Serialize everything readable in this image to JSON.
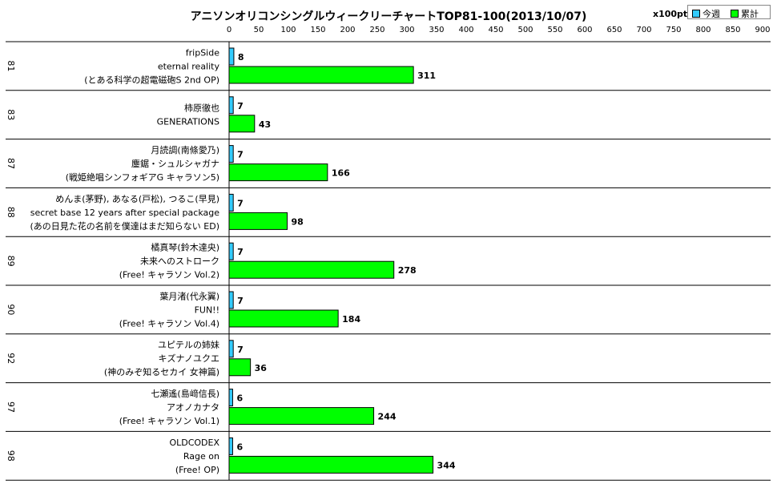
{
  "title": "アニソンオリコンシングルウィークリーチャートTOP81-100(2013/10/07)",
  "unit_label": "x100pt",
  "legend": [
    {
      "label": "今週",
      "color": "#33ccff"
    },
    {
      "label": "累計",
      "color": "#00ff00"
    }
  ],
  "chart_data": {
    "type": "bar",
    "orientation": "horizontal",
    "title": "アニソンオリコンシングルウィークリーチャートTOP81-100(2013/10/07)",
    "unit": "x100pt",
    "xlim": [
      0,
      900
    ],
    "ticks": [
      0,
      50,
      100,
      150,
      200,
      250,
      300,
      350,
      400,
      450,
      500,
      550,
      600,
      650,
      700,
      750,
      800,
      850,
      900
    ],
    "legend_position": "top-right",
    "series": [
      {
        "name": "今週",
        "color": "#33ccff",
        "values": [
          8,
          7,
          7,
          7,
          7,
          7,
          7,
          6,
          6
        ]
      },
      {
        "name": "累計",
        "color": "#00ff00",
        "values": [
          311,
          43,
          166,
          98,
          278,
          184,
          36,
          244,
          344
        ]
      }
    ],
    "rows": [
      {
        "rank": "81",
        "lines": [
          "fripSide",
          "eternal reality",
          "(とある科学の超電磁砲S 2nd OP)"
        ]
      },
      {
        "rank": "83",
        "lines": [
          "柿原徹也",
          "GENERATIONS"
        ]
      },
      {
        "rank": "87",
        "lines": [
          "月読調(南條愛乃)",
          "鏖鋸・シュルシャガナ",
          "(戦姫絶唱シンフォギアG キャラソン5)"
        ]
      },
      {
        "rank": "88",
        "lines": [
          "めんま(茅野), あなる(戸松), つるこ(早見)",
          "secret base 12 years after special package",
          "(あの日見た花の名前を僕達はまだ知らない ED)"
        ]
      },
      {
        "rank": "89",
        "lines": [
          "橘真琴(鈴木達央)",
          "未来へのストローク",
          "(Free! キャラソン Vol.2)"
        ]
      },
      {
        "rank": "90",
        "lines": [
          "葉月渚(代永翼)",
          "FUN!!",
          "(Free! キャラソン Vol.4)"
        ]
      },
      {
        "rank": "92",
        "lines": [
          "ユピテルの姉妹",
          "キズナノユクエ",
          "(神のみぞ知るセカイ 女神篇)"
        ]
      },
      {
        "rank": "97",
        "lines": [
          "七瀬遙(島﨑信長)",
          "アオノカナタ",
          "(Free! キャラソン Vol.1)"
        ]
      },
      {
        "rank": "98",
        "lines": [
          "OLDCODEX",
          "Rage on",
          "(Free! OP)"
        ]
      }
    ]
  }
}
